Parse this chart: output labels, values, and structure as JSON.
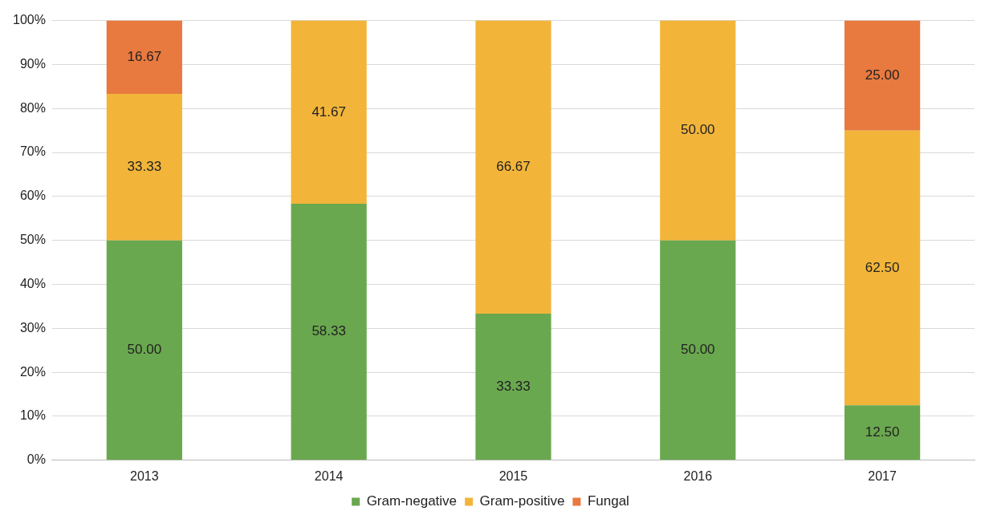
{
  "chart_data": {
    "type": "bar",
    "stacked": true,
    "categories": [
      "2013",
      "2014",
      "2015",
      "2016",
      "2017"
    ],
    "series": [
      {
        "name": "Gram-negative",
        "color": "#6aa84f",
        "values": [
          50.0,
          58.33,
          33.33,
          50.0,
          12.5
        ],
        "value_labels": [
          "50.00",
          "58.33",
          "33.33",
          "50.00",
          "12.50"
        ]
      },
      {
        "name": "Gram-positive",
        "color": "#f2b53a",
        "values": [
          33.33,
          41.67,
          66.67,
          50.0,
          62.5
        ],
        "value_labels": [
          "33.33",
          "41.67",
          "66.67",
          "50.00",
          "62.50"
        ]
      },
      {
        "name": "Fungal",
        "color": "#e8793f",
        "values": [
          16.67,
          null,
          null,
          null,
          25.0
        ],
        "value_labels": [
          "16.67",
          null,
          null,
          null,
          "25.00"
        ]
      }
    ],
    "ylim": [
      0,
      100
    ],
    "yticks": [
      {
        "value": 0,
        "label": "0%"
      },
      {
        "value": 10,
        "label": "10%"
      },
      {
        "value": 20,
        "label": "20%"
      },
      {
        "value": 30,
        "label": "30%"
      },
      {
        "value": 40,
        "label": "40%"
      },
      {
        "value": 50,
        "label": "50%"
      },
      {
        "value": 60,
        "label": "60%"
      },
      {
        "value": 70,
        "label": "70%"
      },
      {
        "value": 80,
        "label": "80%"
      },
      {
        "value": 90,
        "label": "90%"
      },
      {
        "value": 100,
        "label": "100%"
      }
    ],
    "grid": "y",
    "legend": "bottom"
  }
}
